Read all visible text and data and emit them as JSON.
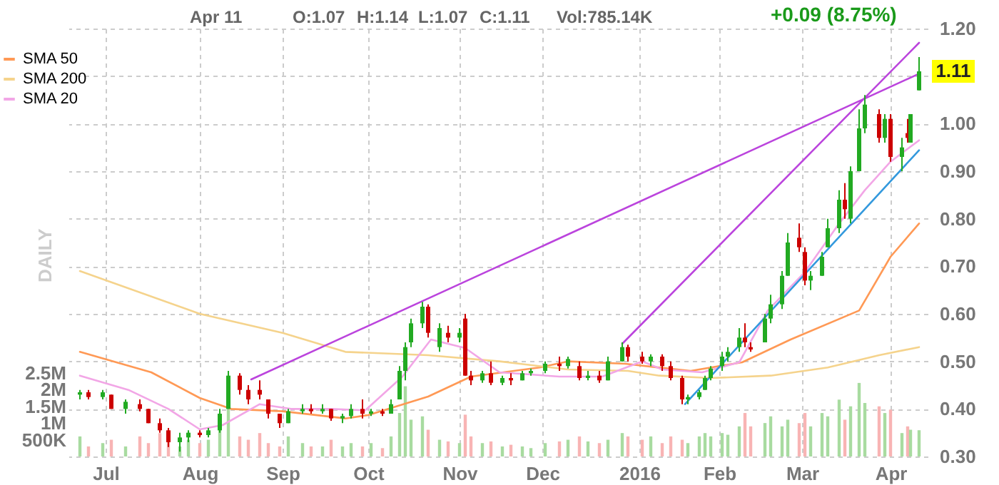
{
  "chart_data": {
    "type": "candlestick",
    "x": [
      "2015-06-22",
      "2015-06-25",
      "2015-06-30",
      "2015-07-03",
      "2015-07-08",
      "2015-07-13",
      "2015-07-16",
      "2015-07-20",
      "2015-07-23",
      "2015-07-27",
      "2015-07-30",
      "2015-08-03",
      "2015-08-06",
      "2015-08-10",
      "2015-08-13",
      "2015-08-17",
      "2015-08-20",
      "2015-08-24",
      "2015-08-27",
      "2015-08-31",
      "2015-09-03",
      "2015-09-08",
      "2015-09-11",
      "2015-09-15",
      "2015-09-18",
      "2015-09-22",
      "2015-09-25",
      "2015-09-29",
      "2015-10-02",
      "2015-10-06",
      "2015-10-09",
      "2015-10-12",
      "2015-10-14",
      "2015-10-16",
      "2015-10-20",
      "2015-10-22",
      "2015-10-26",
      "2015-10-29",
      "2015-11-02",
      "2015-11-04",
      "2015-11-06",
      "2015-11-10",
      "2015-11-13",
      "2015-11-17",
      "2015-11-20",
      "2015-11-24",
      "2015-11-27",
      "2015-12-02",
      "2015-12-07",
      "2015-12-10",
      "2015-12-14",
      "2015-12-17",
      "2015-12-21",
      "2015-12-24",
      "2015-12-29",
      "2015-12-31",
      "2016-01-05",
      "2016-01-08",
      "2016-01-12",
      "2016-01-15",
      "2016-01-19",
      "2016-01-21",
      "2016-01-25",
      "2016-01-27",
      "2016-01-29",
      "2016-02-02",
      "2016-02-04",
      "2016-02-08",
      "2016-02-10",
      "2016-02-12",
      "2016-02-17",
      "2016-02-19",
      "2016-02-23",
      "2016-02-25",
      "2016-02-29",
      "2016-03-02",
      "2016-03-04",
      "2016-03-08",
      "2016-03-10",
      "2016-03-14",
      "2016-03-16",
      "2016-03-18",
      "2016-03-21",
      "2016-03-23",
      "2016-03-28",
      "2016-03-30",
      "2016-04-01",
      "2016-04-05",
      "2016-04-07",
      "2016-04-08",
      "2016-04-11"
    ],
    "series": [
      {
        "type": "bar",
        "axis": "y2",
        "values": [
          600000,
          300000,
          400000,
          500000,
          300000,
          600000,
          400000,
          700000,
          500000,
          300000,
          500000,
          400000,
          500000,
          900000,
          1550000,
          600000,
          500000,
          700000,
          400000,
          300000,
          600000,
          400000,
          300000,
          300000,
          500000,
          300000,
          400000,
          300000,
          400000,
          250000,
          600000,
          1300000,
          2100000,
          1100000,
          1200000,
          800000,
          500000,
          450000,
          400000,
          1250000,
          600000,
          400000,
          450000,
          300000,
          350000,
          300000,
          250000,
          400000,
          450000,
          500000,
          600000,
          450000,
          400000,
          500000,
          700000,
          600000,
          500000,
          600000,
          400000,
          600000,
          500000,
          400000,
          600000,
          700000,
          600000,
          700000,
          650000,
          900000,
          1300000,
          900000,
          1000000,
          1200000,
          900000,
          1100000,
          1000000,
          1300000,
          900000,
          1300000,
          1200000,
          1700000,
          1100000,
          1500000,
          2200000,
          1600000,
          1500000,
          1300000,
          1400000,
          700000,
          900000,
          800000,
          785000
        ],
        "colors": [
          "#a8dba0",
          "#f8b4b4",
          "#a8dba0",
          "#f8b4b4",
          "#a8dba0",
          "#f8b4b4",
          "#f8b4b4",
          "#f8b4b4",
          "#f8b4b4",
          "#a8dba0",
          "#a8dba0",
          "#f8b4b4",
          "#a8dba0",
          "#a8dba0",
          "#a8dba0",
          "#f8b4b4",
          "#f8b4b4",
          "#f8b4b4",
          "#f8b4b4",
          "#f8b4b4",
          "#a8dba0",
          "#a8dba0",
          "#f8b4b4",
          "#a8dba0",
          "#f8b4b4",
          "#a8dba0",
          "#a8dba0",
          "#f8b4b4",
          "#a8dba0",
          "#f8b4b4",
          "#a8dba0",
          "#a8dba0",
          "#a8dba0",
          "#a8dba0",
          "#a8dba0",
          "#f8b4b4",
          "#a8dba0",
          "#f8b4b4",
          "#a8dba0",
          "#f8b4b4",
          "#f8b4b4",
          "#a8dba0",
          "#f8b4b4",
          "#a8dba0",
          "#f8b4b4",
          "#a8dba0",
          "#a8dba0",
          "#a8dba0",
          "#f8b4b4",
          "#a8dba0",
          "#f8b4b4",
          "#a8dba0",
          "#f8b4b4",
          "#a8dba0",
          "#a8dba0",
          "#f8b4b4",
          "#f8b4b4",
          "#a8dba0",
          "#f8b4b4",
          "#f8b4b4",
          "#f8b4b4",
          "#a8dba0",
          "#a8dba0",
          "#a8dba0",
          "#a8dba0",
          "#a8dba0",
          "#a8dba0",
          "#a8dba0",
          "#f8b4b4",
          "#f8b4b4",
          "#a8dba0",
          "#a8dba0",
          "#a8dba0",
          "#a8dba0",
          "#f8b4b4",
          "#f8b4b4",
          "#a8dba0",
          "#a8dba0",
          "#a8dba0",
          "#a8dba0",
          "#f8b4b4",
          "#a8dba0",
          "#a8dba0",
          "#a8dba0",
          "#f8b4b4",
          "#a8dba0",
          "#f8b4b4",
          "#a8dba0",
          "#f8b4b4",
          "#a8dba0",
          "#a8dba0"
        ]
      },
      {
        "type": "candlestick",
        "ohlc": [
          [
            0.43,
            0.44,
            0.42,
            0.435
          ],
          [
            0.435,
            0.44,
            0.42,
            0.425
          ],
          [
            0.425,
            0.44,
            0.42,
            0.435
          ],
          [
            0.43,
            0.43,
            0.4,
            0.4
          ],
          [
            0.4,
            0.42,
            0.39,
            0.415
          ],
          [
            0.41,
            0.42,
            0.395,
            0.4
          ],
          [
            0.4,
            0.4,
            0.37,
            0.37
          ],
          [
            0.37,
            0.38,
            0.35,
            0.355
          ],
          [
            0.355,
            0.36,
            0.32,
            0.33
          ],
          [
            0.33,
            0.35,
            0.31,
            0.34
          ],
          [
            0.34,
            0.355,
            0.33,
            0.35
          ],
          [
            0.35,
            0.355,
            0.34,
            0.345
          ],
          [
            0.345,
            0.36,
            0.34,
            0.355
          ],
          [
            0.355,
            0.4,
            0.35,
            0.39
          ],
          [
            0.4,
            0.48,
            0.4,
            0.47
          ],
          [
            0.47,
            0.475,
            0.43,
            0.44
          ],
          [
            0.44,
            0.45,
            0.41,
            0.42
          ],
          [
            0.44,
            0.46,
            0.42,
            0.43
          ],
          [
            0.42,
            0.42,
            0.38,
            0.39
          ],
          [
            0.39,
            0.39,
            0.36,
            0.37
          ],
          [
            0.37,
            0.4,
            0.37,
            0.395
          ],
          [
            0.395,
            0.41,
            0.39,
            0.4
          ],
          [
            0.4,
            0.41,
            0.39,
            0.395
          ],
          [
            0.395,
            0.41,
            0.39,
            0.4
          ],
          [
            0.4,
            0.4,
            0.375,
            0.38
          ],
          [
            0.38,
            0.39,
            0.37,
            0.385
          ],
          [
            0.385,
            0.41,
            0.38,
            0.4
          ],
          [
            0.4,
            0.42,
            0.38,
            0.39
          ],
          [
            0.39,
            0.4,
            0.385,
            0.395
          ],
          [
            0.395,
            0.4,
            0.385,
            0.39
          ],
          [
            0.39,
            0.42,
            0.39,
            0.41
          ],
          [
            0.42,
            0.49,
            0.42,
            0.48
          ],
          [
            0.48,
            0.54,
            0.46,
            0.53
          ],
          [
            0.54,
            0.59,
            0.53,
            0.58
          ],
          [
            0.58,
            0.625,
            0.57,
            0.615
          ],
          [
            0.615,
            0.62,
            0.55,
            0.56
          ],
          [
            0.53,
            0.58,
            0.52,
            0.57
          ],
          [
            0.56,
            0.575,
            0.54,
            0.55
          ],
          [
            0.55,
            0.57,
            0.54,
            0.56
          ],
          [
            0.59,
            0.6,
            0.47,
            0.47
          ],
          [
            0.47,
            0.48,
            0.45,
            0.46
          ],
          [
            0.46,
            0.48,
            0.455,
            0.475
          ],
          [
            0.475,
            0.5,
            0.45,
            0.455
          ],
          [
            0.455,
            0.47,
            0.45,
            0.465
          ],
          [
            0.465,
            0.475,
            0.45,
            0.46
          ],
          [
            0.46,
            0.48,
            0.46,
            0.475
          ],
          [
            0.475,
            0.485,
            0.47,
            0.48
          ],
          [
            0.48,
            0.5,
            0.475,
            0.495
          ],
          [
            0.495,
            0.51,
            0.48,
            0.49
          ],
          [
            0.49,
            0.51,
            0.485,
            0.505
          ],
          [
            0.49,
            0.5,
            0.46,
            0.465
          ],
          [
            0.465,
            0.48,
            0.46,
            0.47
          ],
          [
            0.47,
            0.48,
            0.455,
            0.46
          ],
          [
            0.46,
            0.51,
            0.46,
            0.5
          ],
          [
            0.5,
            0.54,
            0.5,
            0.53
          ],
          [
            0.53,
            0.535,
            0.5,
            0.51
          ],
          [
            0.51,
            0.52,
            0.495,
            0.5
          ],
          [
            0.5,
            0.515,
            0.49,
            0.51
          ],
          [
            0.51,
            0.515,
            0.48,
            0.49
          ],
          [
            0.49,
            0.5,
            0.46,
            0.465
          ],
          [
            0.465,
            0.47,
            0.41,
            0.42
          ],
          [
            0.42,
            0.43,
            0.41,
            0.425
          ],
          [
            0.425,
            0.44,
            0.42,
            0.435
          ],
          [
            0.44,
            0.47,
            0.44,
            0.465
          ],
          [
            0.465,
            0.49,
            0.46,
            0.485
          ],
          [
            0.49,
            0.52,
            0.48,
            0.51
          ],
          [
            0.51,
            0.53,
            0.5,
            0.52
          ],
          [
            0.53,
            0.57,
            0.52,
            0.55
          ],
          [
            0.55,
            0.58,
            0.53,
            0.54
          ],
          [
            0.53,
            0.54,
            0.52,
            0.525
          ],
          [
            0.54,
            0.6,
            0.54,
            0.59
          ],
          [
            0.59,
            0.64,
            0.58,
            0.62
          ],
          [
            0.62,
            0.69,
            0.61,
            0.68
          ],
          [
            0.68,
            0.77,
            0.68,
            0.75
          ],
          [
            0.76,
            0.79,
            0.73,
            0.74
          ],
          [
            0.73,
            0.74,
            0.66,
            0.67
          ],
          [
            0.67,
            0.69,
            0.65,
            0.68
          ],
          [
            0.68,
            0.73,
            0.68,
            0.72
          ],
          [
            0.74,
            0.8,
            0.74,
            0.78
          ],
          [
            0.78,
            0.86,
            0.77,
            0.84
          ],
          [
            0.84,
            0.875,
            0.8,
            0.82
          ],
          [
            0.8,
            0.91,
            0.79,
            0.9
          ],
          [
            0.9,
            1.03,
            0.9,
            0.99
          ],
          [
            0.99,
            1.06,
            0.98,
            1.04
          ],
          [
            1.02,
            1.03,
            0.96,
            0.97
          ],
          [
            0.97,
            1.02,
            0.96,
            1.01
          ],
          [
            1.01,
            1.02,
            0.92,
            0.93
          ],
          [
            0.93,
            0.97,
            0.9,
            0.95
          ],
          [
            0.98,
            1.01,
            0.96,
            0.97
          ],
          [
            0.96,
            1.02,
            0.96,
            1.02
          ],
          [
            1.07,
            1.14,
            1.07,
            1.11
          ]
        ],
        "colors": [
          "#22aa22",
          "#cc0000",
          "#22aa22",
          "#cc0000",
          "#22aa22",
          "#cc0000",
          "#cc0000",
          "#cc0000",
          "#cc0000",
          "#22aa22",
          "#22aa22",
          "#cc0000",
          "#22aa22",
          "#22aa22",
          "#22aa22",
          "#cc0000",
          "#cc0000",
          "#cc0000",
          "#cc0000",
          "#cc0000",
          "#22aa22",
          "#22aa22",
          "#cc0000",
          "#22aa22",
          "#cc0000",
          "#22aa22",
          "#22aa22",
          "#cc0000",
          "#22aa22",
          "#cc0000",
          "#22aa22",
          "#22aa22",
          "#22aa22",
          "#22aa22",
          "#22aa22",
          "#cc0000",
          "#22aa22",
          "#cc0000",
          "#22aa22",
          "#cc0000",
          "#cc0000",
          "#22aa22",
          "#cc0000",
          "#22aa22",
          "#cc0000",
          "#22aa22",
          "#22aa22",
          "#22aa22",
          "#cc0000",
          "#22aa22",
          "#cc0000",
          "#22aa22",
          "#cc0000",
          "#22aa22",
          "#22aa22",
          "#cc0000",
          "#cc0000",
          "#22aa22",
          "#cc0000",
          "#cc0000",
          "#cc0000",
          "#22aa22",
          "#22aa22",
          "#22aa22",
          "#22aa22",
          "#22aa22",
          "#22aa22",
          "#22aa22",
          "#cc0000",
          "#cc0000",
          "#22aa22",
          "#22aa22",
          "#22aa22",
          "#22aa22",
          "#cc0000",
          "#cc0000",
          "#22aa22",
          "#22aa22",
          "#22aa22",
          "#22aa22",
          "#cc0000",
          "#22aa22",
          "#22aa22",
          "#22aa22",
          "#cc0000",
          "#22aa22",
          "#cc0000",
          "#22aa22",
          "#cc0000",
          "#22aa22",
          "#22aa22"
        ]
      },
      {
        "type": "line",
        "name": "SMA 50",
        "color": "#ff9955",
        "x": [
          "2015-06-22",
          "2015-07-17",
          "2015-08-03",
          "2015-08-14",
          "2015-09-01",
          "2015-09-23",
          "2015-10-01",
          "2015-10-22",
          "2015-11-06",
          "2015-11-30",
          "2015-12-10",
          "2015-12-30",
          "2016-01-11",
          "2016-01-22",
          "2016-02-09",
          "2016-02-26",
          "2016-03-21",
          "2016-04-01",
          "2016-04-11"
        ],
        "values": [
          0.52,
          0.477,
          0.423,
          0.4,
          0.395,
          0.38,
          0.387,
          0.426,
          0.468,
          0.487,
          0.5,
          0.495,
          0.487,
          0.48,
          0.498,
          0.546,
          0.607,
          0.72,
          0.79
        ]
      },
      {
        "type": "line",
        "name": "SMA 200",
        "color": "#f5d38c",
        "x": [
          "2015-06-22",
          "2015-08-03",
          "2015-09-01",
          "2015-09-23",
          "2015-10-22",
          "2015-11-16",
          "2015-12-10",
          "2015-12-31",
          "2016-01-11",
          "2016-01-29",
          "2016-02-19",
          "2016-03-10",
          "2016-03-28",
          "2016-04-11"
        ],
        "values": [
          0.69,
          0.6,
          0.56,
          0.52,
          0.513,
          0.5,
          0.483,
          0.48,
          0.47,
          0.465,
          0.47,
          0.487,
          0.513,
          0.53
        ]
      },
      {
        "type": "line",
        "name": "SMA 20",
        "color": "#f2a6e6",
        "x": [
          "2015-06-22",
          "2015-07-09",
          "2015-07-23",
          "2015-08-03",
          "2015-08-11",
          "2015-08-24",
          "2015-09-04",
          "2015-09-18",
          "2015-09-30",
          "2015-10-13",
          "2015-10-23",
          "2015-11-04",
          "2015-11-16",
          "2015-12-07",
          "2015-12-22",
          "2016-01-05",
          "2016-01-12",
          "2016-01-26",
          "2016-02-08",
          "2016-02-18",
          "2016-03-02",
          "2016-03-14",
          "2016-03-23",
          "2016-04-01",
          "2016-04-11"
        ],
        "values": [
          0.47,
          0.44,
          0.4,
          0.357,
          0.366,
          0.41,
          0.4,
          0.4,
          0.397,
          0.468,
          0.546,
          0.528,
          0.477,
          0.468,
          0.468,
          0.5,
          0.483,
          0.477,
          0.498,
          0.607,
          0.688,
          0.79,
          0.86,
          0.92,
          0.965
        ]
      },
      {
        "type": "line",
        "color": "#bb44dd",
        "x": [
          "2015-08-21",
          "2016-04-11"
        ],
        "values": [
          0.462,
          1.105
        ]
      },
      {
        "type": "line",
        "color": "#bb44dd",
        "x": [
          "2015-12-29",
          "2016-04-11"
        ],
        "values": [
          0.537,
          1.17
        ]
      },
      {
        "type": "line",
        "color": "#3399dd",
        "x": [
          "2016-01-20",
          "2016-04-11"
        ],
        "values": [
          0.41,
          0.944
        ]
      }
    ],
    "xlim": [
      "2015-06-18",
      "2016-04-14"
    ],
    "xticks": [
      {
        "value": "2015-07-01",
        "label": "Jul"
      },
      {
        "value": "2015-08-03",
        "label": "Aug"
      },
      {
        "value": "2015-09-01",
        "label": "Sep"
      },
      {
        "value": "2015-10-01",
        "label": "Oct"
      },
      {
        "value": "2015-11-02",
        "label": "Nov"
      },
      {
        "value": "2015-12-01",
        "label": "Dec"
      },
      {
        "value": "2016-01-04",
        "label": "2016"
      },
      {
        "value": "2016-02-01",
        "label": "Feb"
      },
      {
        "value": "2016-03-01",
        "label": "Mar"
      },
      {
        "value": "2016-04-01",
        "label": "Apr"
      }
    ],
    "ylim": [
      0.3,
      1.2
    ],
    "yticks": [
      {
        "value": 0.3,
        "label": "0.30"
      },
      {
        "value": 0.4,
        "label": "0.40"
      },
      {
        "value": 0.5,
        "label": "0.50"
      },
      {
        "value": 0.6,
        "label": "0.60"
      },
      {
        "value": 0.7,
        "label": "0.70"
      },
      {
        "value": 0.8,
        "label": "0.80"
      },
      {
        "value": 0.9,
        "label": "0.90"
      },
      {
        "value": 1.0,
        "label": "1.00"
      },
      {
        "value": 1.1,
        "label": null
      },
      {
        "value": 1.2,
        "label": "1.20"
      }
    ],
    "y2lim": [
      0,
      12800000
    ],
    "y2ticks": [
      {
        "value": 500000,
        "label": "500K"
      },
      {
        "value": 1000000,
        "label": "1M"
      },
      {
        "value": 1500000,
        "label": "1.5M"
      },
      {
        "value": 2000000,
        "label": "2M"
      },
      {
        "value": 2500000,
        "label": "2.5M"
      }
    ],
    "grid": true,
    "legend": "top left",
    "annotations": [
      "Apr 11",
      "O:1.07",
      "H:1.14",
      "L:1.07",
      "C:1.11",
      "Vol:785.14K",
      "+0.09 (8.75%)",
      "DAILY",
      {
        "text": "1.11",
        "x": "2016-04-11",
        "y": 1.11
      }
    ]
  }
}
